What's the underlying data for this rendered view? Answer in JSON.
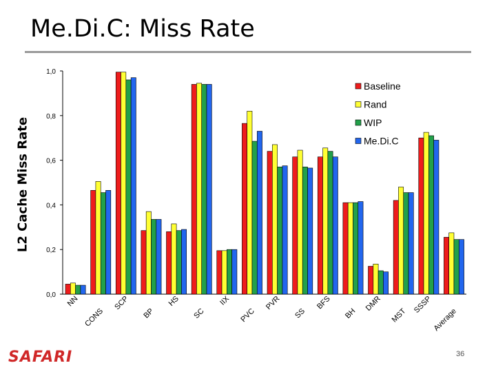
{
  "slide": {
    "title": "Me.Di.C: Miss Rate",
    "page_number": "36",
    "logo_text": "SAFARI"
  },
  "colors": {
    "Baseline": "#ee1c1c",
    "Rand": "#ffff33",
    "WIP": "#22a04a",
    "Me.Di.C": "#2266ee",
    "logo": "#d02828"
  },
  "chart_data": {
    "type": "bar",
    "title": "",
    "xlabel": "",
    "ylabel": "L2 Cache Miss Rate",
    "ylim": [
      0,
      1
    ],
    "yticks": [
      "0,0",
      "0,2",
      "0,4",
      "0,6",
      "0,8",
      "1,0"
    ],
    "legend_position": "top-right",
    "categories": [
      "NN",
      "CONS",
      "SCP",
      "BP",
      "HS",
      "SC",
      "IIX",
      "PVC",
      "PVR",
      "SS",
      "BFS",
      "BH",
      "DMR",
      "MST",
      "SSSP",
      "Average"
    ],
    "series": [
      {
        "name": "Baseline",
        "values": [
          0.045,
          0.465,
          0.995,
          0.285,
          0.28,
          0.94,
          0.195,
          0.765,
          0.64,
          0.615,
          0.615,
          0.41,
          0.125,
          0.42,
          0.7,
          0.255
        ]
      },
      {
        "name": "Rand",
        "values": [
          0.05,
          0.505,
          0.995,
          0.37,
          0.315,
          0.945,
          0.195,
          0.82,
          0.67,
          0.645,
          0.655,
          0.41,
          0.135,
          0.48,
          0.725,
          0.275
        ]
      },
      {
        "name": "WIP",
        "values": [
          0.04,
          0.455,
          0.96,
          0.335,
          0.285,
          0.94,
          0.2,
          0.685,
          0.57,
          0.57,
          0.64,
          0.41,
          0.105,
          0.455,
          0.71,
          0.245
        ]
      },
      {
        "name": "Me.Di.C",
        "values": [
          0.04,
          0.465,
          0.97,
          0.335,
          0.29,
          0.94,
          0.2,
          0.73,
          0.575,
          0.565,
          0.615,
          0.415,
          0.1,
          0.455,
          0.69,
          0.245
        ]
      }
    ]
  }
}
